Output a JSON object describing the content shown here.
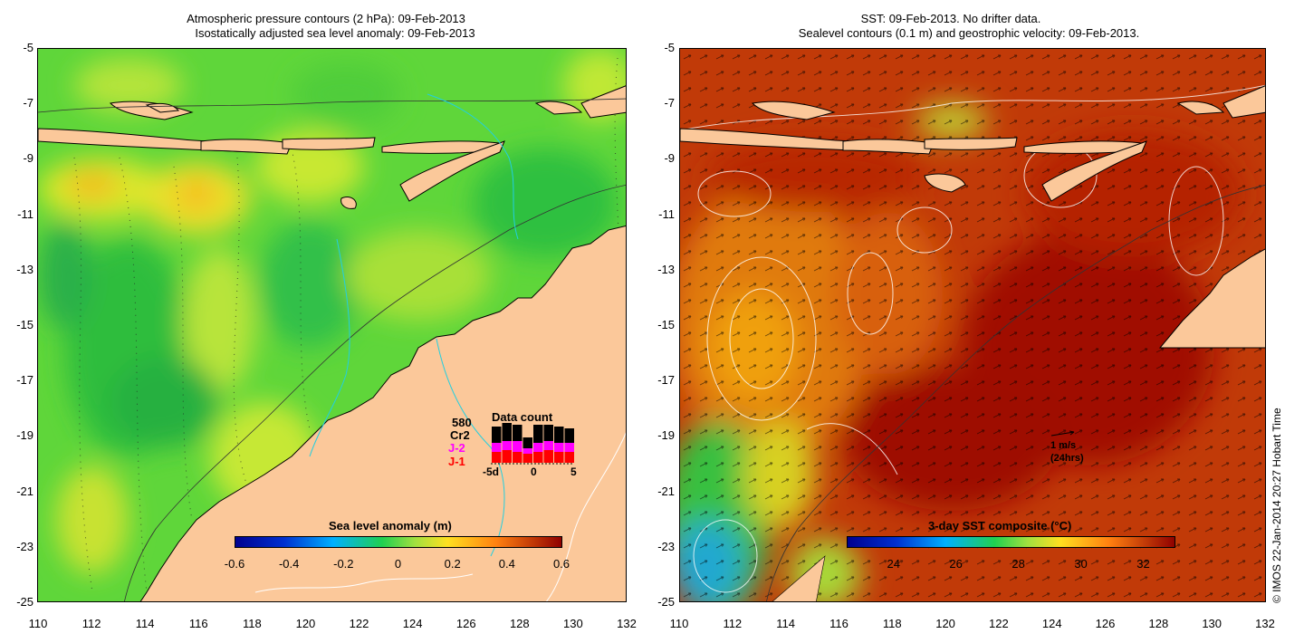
{
  "left_panel": {
    "title_line1": "Atmospheric pressure contours (2 hPa): 09-Feb-2013",
    "title_line2": "Isostatically adjusted sea level anomaly: 09-Feb-2013",
    "colorbar": {
      "label": "Sea level anomaly (m)",
      "ticks": [
        "-0.6",
        "-0.4",
        "-0.2",
        "0",
        "0.2",
        "0.4",
        "0.6"
      ],
      "range": [
        -0.6,
        0.6
      ]
    },
    "data_count": {
      "title": "Data count",
      "total": "580",
      "sat1": "Cr2",
      "sat2": "J-2",
      "sat3": "J-1",
      "x_labels": [
        "-5d",
        "0",
        "5"
      ],
      "colors": {
        "Cr2": "#000000",
        "J-2": "#ff00ff",
        "J-1": "#ff0000"
      }
    }
  },
  "right_panel": {
    "title_line1": "SST: 09-Feb-2013. No drifter data.",
    "title_line2": "Sealevel contours (0.1 m) and geostrophic velocity: 09-Feb-2013.",
    "colorbar": {
      "label": "3-day SST composite (°C)",
      "ticks": [
        "24",
        "26",
        "28",
        "30",
        "32"
      ],
      "range": [
        22.5,
        33
      ]
    },
    "velocity_scale": {
      "value": "1 m/s",
      "note": "(24hrs)"
    }
  },
  "axes": {
    "lat_labels": [
      "-5",
      "-7",
      "-9",
      "-11",
      "-13",
      "-15",
      "-17",
      "-19",
      "-21",
      "-23",
      "-25"
    ],
    "lon_labels": [
      "110",
      "112",
      "114",
      "116",
      "118",
      "120",
      "122",
      "124",
      "126",
      "128",
      "130",
      "132"
    ]
  },
  "credit": "© IMOS 22-Jan-2014 20:27 Hobart Time",
  "colors": {
    "land": "#fbc89a",
    "ocean_green": "#3fcf3f",
    "sst_red": "#b51800",
    "sst_orange": "#d9560a"
  }
}
